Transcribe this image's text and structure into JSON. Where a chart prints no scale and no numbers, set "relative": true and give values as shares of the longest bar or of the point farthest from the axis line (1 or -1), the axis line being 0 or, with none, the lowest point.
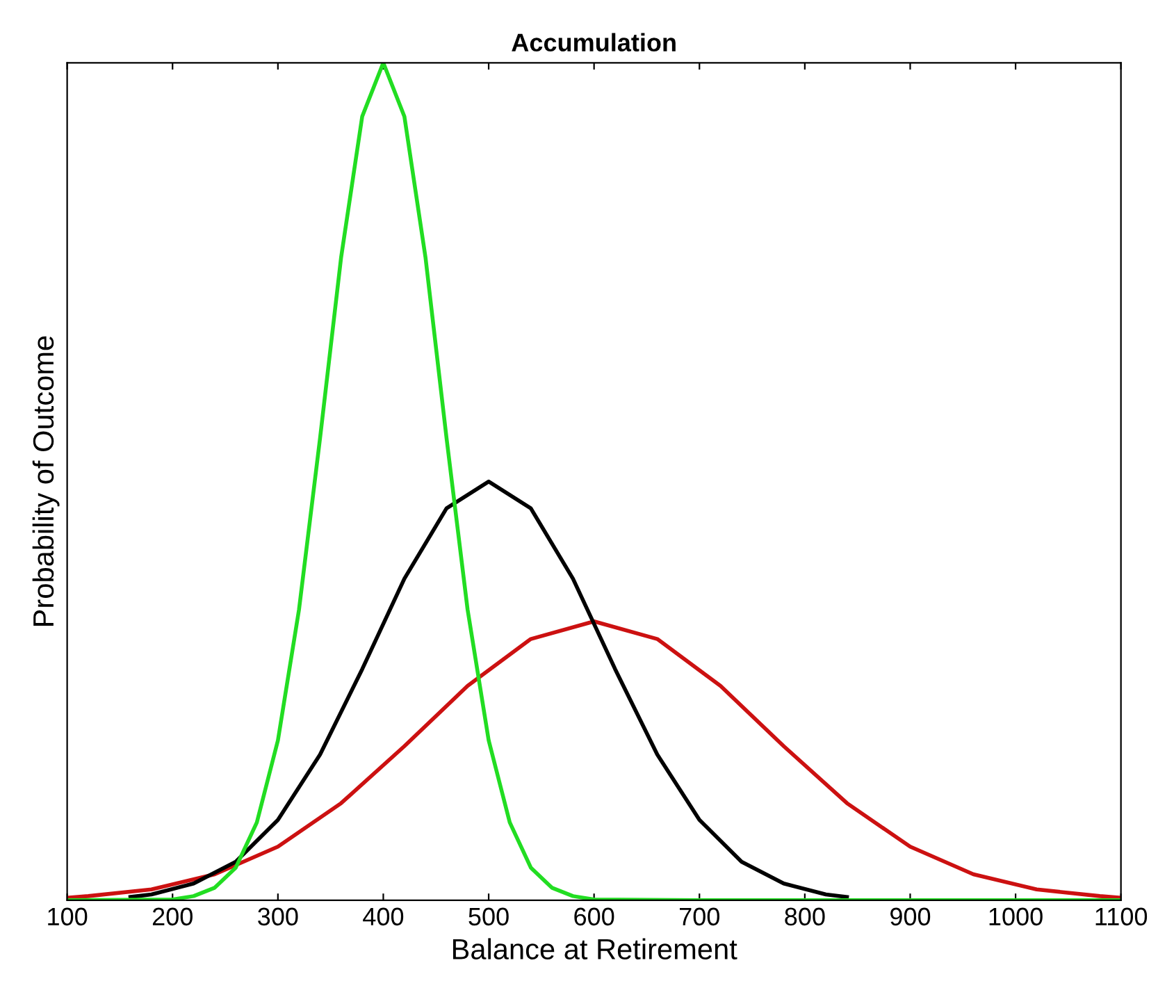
{
  "chart_data": {
    "type": "line",
    "title": "Accumulation",
    "xlabel": "Balance at Retirement",
    "ylabel": "Probability of Outcome",
    "relative": true,
    "xlim": [
      100,
      1100
    ],
    "xticks": [
      100,
      200,
      300,
      400,
      500,
      600,
      700,
      800,
      900,
      1000,
      1100
    ],
    "grid": false,
    "legend": false,
    "line_style": "solid",
    "marker": "none",
    "series": [
      {
        "color": "#cc1111",
        "x": [
          100,
          120,
          180,
          240,
          300,
          360,
          420,
          480,
          540,
          600,
          660,
          720,
          780,
          840,
          900,
          960,
          1020,
          1080,
          1100
        ],
        "values": [
          0.003,
          0.005,
          0.013,
          0.031,
          0.064,
          0.116,
          0.184,
          0.256,
          0.312,
          0.333,
          0.312,
          0.256,
          0.184,
          0.116,
          0.064,
          0.031,
          0.013,
          0.005,
          0.003
        ]
      },
      {
        "color": "#000000",
        "x": [
          160,
          180,
          220,
          260,
          300,
          340,
          380,
          420,
          460,
          500,
          540,
          580,
          620,
          660,
          700,
          740,
          780,
          820,
          840
        ],
        "values": [
          0.004,
          0.007,
          0.02,
          0.046,
          0.096,
          0.174,
          0.276,
          0.384,
          0.468,
          0.5,
          0.468,
          0.384,
          0.276,
          0.174,
          0.096,
          0.046,
          0.02,
          0.007,
          0.004
        ]
      },
      {
        "color": "#22dd22",
        "x": [
          100,
          200,
          220,
          240,
          260,
          280,
          300,
          320,
          340,
          360,
          380,
          400,
          420,
          440,
          460,
          480,
          500,
          520,
          540,
          560,
          580,
          600,
          700,
          1100
        ],
        "values": [
          0,
          0.001,
          0.005,
          0.015,
          0.039,
          0.093,
          0.191,
          0.347,
          0.552,
          0.768,
          0.936,
          1,
          0.936,
          0.768,
          0.552,
          0.347,
          0.191,
          0.093,
          0.039,
          0.015,
          0.005,
          0.001,
          0,
          0
        ]
      }
    ]
  }
}
